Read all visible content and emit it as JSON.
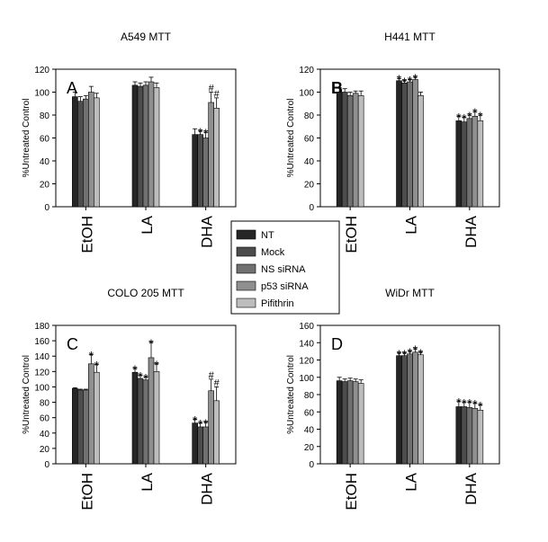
{
  "legend": {
    "items": [
      "NT",
      "Mock",
      "NS  siRNA",
      "p53 siRNA",
      "Pifithrin"
    ],
    "colors": [
      "#262626",
      "#4d4d4d",
      "#707070",
      "#8f8f8f",
      "#bdbdbd"
    ]
  },
  "chart_data": [
    {
      "type": "bar",
      "title": "A549 MTT",
      "panel_letter": "A",
      "ylabel": "%Untreated Control",
      "ylim": [
        0,
        120
      ],
      "yticks": [
        0,
        20,
        40,
        60,
        80,
        100,
        120
      ],
      "categories": [
        "EtOH",
        "LA",
        "DHA"
      ],
      "series": [
        {
          "name": "NT",
          "values": [
            96,
            106,
            63
          ],
          "errors": [
            4,
            3,
            5
          ]
        },
        {
          "name": "Mock",
          "values": [
            92,
            105,
            63
          ],
          "errors": [
            4,
            3,
            3
          ]
        },
        {
          "name": "NS  siRNA",
          "values": [
            94,
            106,
            60
          ],
          "errors": [
            3,
            3,
            5
          ]
        },
        {
          "name": "p53 siRNA",
          "values": [
            100,
            109,
            91
          ],
          "errors": [
            5,
            4,
            9
          ]
        },
        {
          "name": "Pifithrin",
          "values": [
            95,
            104,
            86
          ],
          "errors": [
            4,
            4,
            9
          ]
        }
      ],
      "annotations": [
        [
          "",
          "",
          ""
        ],
        [
          "",
          "",
          "*"
        ],
        [
          "",
          "",
          "*"
        ],
        [
          "",
          "",
          "#"
        ],
        [
          "",
          "",
          "#"
        ]
      ]
    },
    {
      "type": "bar",
      "title": "H441 MTT",
      "panel_letter": "B",
      "ylabel": "%Untreated Control",
      "ylim": [
        0,
        120
      ],
      "yticks": [
        0,
        20,
        40,
        60,
        80,
        100,
        120
      ],
      "categories": [
        "EtOH",
        "LA",
        "DHA"
      ],
      "series": [
        {
          "name": "NT",
          "values": [
            100,
            110,
            75
          ],
          "errors": [
            4,
            2,
            4
          ]
        },
        {
          "name": "Mock",
          "values": [
            100,
            108,
            74
          ],
          "errors": [
            3,
            2,
            4
          ]
        },
        {
          "name": "NS  siRNA",
          "values": [
            97,
            109,
            77
          ],
          "errors": [
            3,
            2,
            3
          ]
        },
        {
          "name": "p53 siRNA",
          "values": [
            99,
            111,
            79
          ],
          "errors": [
            2,
            2,
            4
          ]
        },
        {
          "name": "Pifithrin",
          "values": [
            97,
            97,
            75
          ],
          "errors": [
            4,
            3,
            5
          ]
        }
      ],
      "annotations": [
        [
          "",
          "*",
          "*"
        ],
        [
          "",
          "*",
          "*"
        ],
        [
          "",
          "*",
          "*"
        ],
        [
          "",
          "*",
          "*"
        ],
        [
          "",
          "",
          "*"
        ]
      ]
    },
    {
      "type": "bar",
      "title": "COLO 205 MTT",
      "panel_letter": "C",
      "ylabel": "%Untreated Control",
      "ylim": [
        0,
        180
      ],
      "yticks": [
        0,
        20,
        40,
        60,
        80,
        100,
        120,
        140,
        160,
        180
      ],
      "categories": [
        "EtOH",
        "LA",
        "DHA"
      ],
      "series": [
        {
          "name": "NT",
          "values": [
            98,
            119,
            53
          ],
          "errors": [
            1,
            5,
            5
          ]
        },
        {
          "name": "Mock",
          "values": [
            96,
            111,
            48
          ],
          "errors": [
            1,
            4,
            5
          ]
        },
        {
          "name": "NS  siRNA",
          "values": [
            96,
            109,
            48
          ],
          "errors": [
            1,
            4,
            6
          ]
        },
        {
          "name": "p53 siRNA",
          "values": [
            130,
            138,
            95
          ],
          "errors": [
            12,
            20,
            15
          ]
        },
        {
          "name": "Pifithrin",
          "values": [
            119,
            120,
            82
          ],
          "errors": [
            10,
            10,
            18
          ]
        }
      ],
      "annotations": [
        [
          "",
          "*",
          "*"
        ],
        [
          "",
          "*",
          "*"
        ],
        [
          "",
          "*",
          "*"
        ],
        [
          "*",
          "*",
          "#"
        ],
        [
          "*",
          "*",
          "#"
        ]
      ]
    },
    {
      "type": "bar",
      "title": "WiDr MTT",
      "panel_letter": "D",
      "ylabel": "%Untreated Control",
      "ylim": [
        0,
        160
      ],
      "yticks": [
        0,
        20,
        40,
        60,
        80,
        100,
        120,
        140,
        160
      ],
      "categories": [
        "EtOH",
        "LA",
        "DHA"
      ],
      "series": [
        {
          "name": "NT",
          "values": [
            96,
            125,
            66
          ],
          "errors": [
            4,
            3,
            6
          ]
        },
        {
          "name": "Mock",
          "values": [
            95,
            125,
            66
          ],
          "errors": [
            3,
            3,
            5
          ]
        },
        {
          "name": "NS  siRNA",
          "values": [
            96,
            127,
            65
          ],
          "errors": [
            3,
            3,
            6
          ]
        },
        {
          "name": "p53 siRNA",
          "values": [
            95,
            129,
            64
          ],
          "errors": [
            3,
            4,
            6
          ]
        },
        {
          "name": "Pifithrin",
          "values": [
            93,
            126,
            62
          ],
          "errors": [
            4,
            3,
            6
          ]
        }
      ],
      "annotations": [
        [
          "",
          "*",
          "*"
        ],
        [
          "",
          "*",
          "*"
        ],
        [
          "",
          "*",
          "*"
        ],
        [
          "",
          "*",
          "*"
        ],
        [
          "",
          "*",
          "*"
        ]
      ]
    }
  ]
}
